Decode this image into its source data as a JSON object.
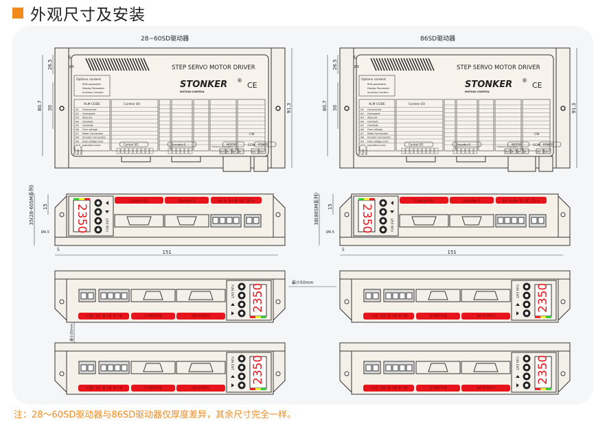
{
  "header": {
    "title": "外观尺寸及安装",
    "accent_color": "#f08a1c"
  },
  "views": {
    "left_title": "28~60SD驱动器",
    "right_title": "86SD驱动器"
  },
  "driver": {
    "panel_title": "STEP SERVO MOTOR DRIVER",
    "brand": "STONKER",
    "brand_sub": "MOTION CONTROL",
    "registered": "®",
    "ce": "CE",
    "options_title": "Options content",
    "options": [
      "RUN parameter",
      "Display Parameter",
      "Auxiliary function"
    ],
    "alm_header": "ALM CODE",
    "alarms": [
      {
        "code": "A1",
        "name": "Overcurrent"
      },
      {
        "code": "A2",
        "name": "Overspeed"
      },
      {
        "code": "A3",
        "name": "Step-out"
      },
      {
        "code": "A4",
        "name": "Overload"
      },
      {
        "code": "A5",
        "name": "Overheat"
      },
      {
        "code": "A6",
        "name": "Over voltage"
      },
      {
        "code": "A7",
        "name": "Motor Connection"
      },
      {
        "code": "A8",
        "name": "Encoder Connection"
      },
      {
        "code": "A9",
        "name": "Hole voltage error"
      },
      {
        "code": "A10",
        "name": "Inquisition error"
      }
    ],
    "control_header": "Control I/O",
    "leds": [
      "Power",
      "Run",
      "Alarm"
    ],
    "port_labels": [
      "Control I/O",
      "Encoder-S",
      "MOTOR",
      "POWER"
    ],
    "motor_terminals": [
      "A+",
      "A-",
      "B+",
      "B-"
    ],
    "power_terminals": [
      "DC-",
      "DC+"
    ],
    "default_note": "*Default parameters",
    "dir_options": [
      "CW",
      "CCW"
    ],
    "display_value": "2350",
    "front_labels": [
      "Control I/O",
      "Encoder-S",
      "A+ A- B+ B- DC- DC+"
    ],
    "keys_label": "FUN ENT",
    "label_color": "#e8141b"
  },
  "dimensions": {
    "top_width_outer": "91.3",
    "top_height": "80.7",
    "top_a": "26.5",
    "top_b": "30",
    "top_edge": "5",
    "hole": "Ø5",
    "front_height_left": "35(28-60SM系列)",
    "front_height_right": "38(86SM系列)",
    "front_a": "15",
    "front_hole": "Ø4.5",
    "front_edge": "5",
    "length": "151",
    "min_gap_horizontal": "最小50mm",
    "min_gap_vertical": "最小20mm"
  },
  "footer": {
    "note": "注：28～60SD驱动器与86SD驱动器仅厚度差异，其余尺寸完全一样。"
  }
}
